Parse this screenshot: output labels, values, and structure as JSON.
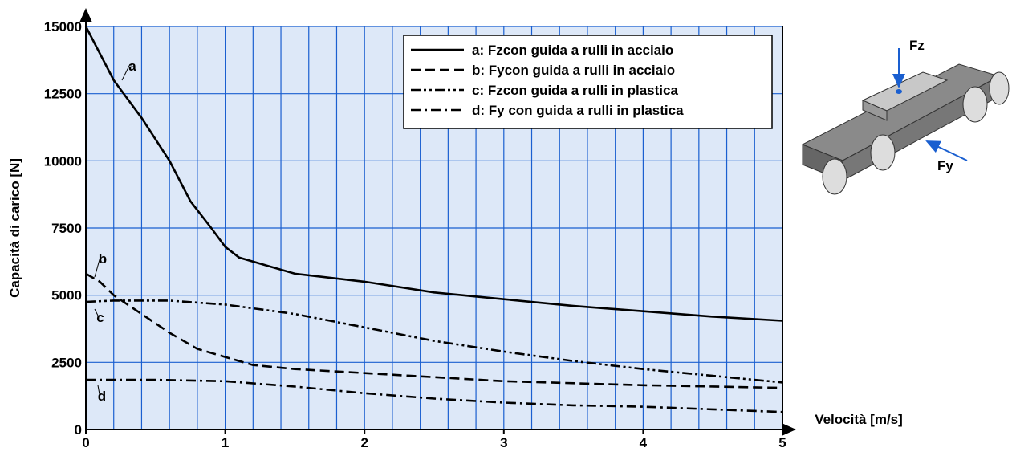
{
  "chart_data": {
    "type": "line",
    "xlabel": "Velocità [m/s]",
    "ylabel": "Capacità di carico [N]",
    "xlim": [
      0,
      5
    ],
    "ylim": [
      0,
      15000
    ],
    "xticks": [
      0,
      1,
      2,
      3,
      4,
      5
    ],
    "yticks": [
      0,
      2500,
      5000,
      7500,
      10000,
      12500,
      15000
    ],
    "grid": true,
    "legend": "upper right",
    "series": [
      {
        "name": "a: Fzcon guida a rulli in acciaio",
        "label": "a",
        "color": "#000000",
        "dash": "solid",
        "x": [
          0,
          0.1,
          0.2,
          0.4,
          0.6,
          0.75,
          0.9,
          1.0,
          1.1,
          1.3,
          1.5,
          2,
          2.5,
          3,
          3.5,
          4,
          4.5,
          5
        ],
        "values": [
          15000,
          14000,
          13000,
          11600,
          10000,
          8500,
          7500,
          6800,
          6400,
          6100,
          5800,
          5500,
          5100,
          4850,
          4600,
          4400,
          4200,
          4050
        ]
      },
      {
        "name": "b: Fycon guida a rulli in acciaio",
        "label": "b",
        "color": "#000000",
        "dash": "dashed",
        "x": [
          0,
          0.1,
          0.2,
          0.4,
          0.6,
          0.8,
          1.0,
          1.2,
          1.5,
          2,
          3,
          4,
          5
        ],
        "values": [
          5800,
          5500,
          5000,
          4300,
          3600,
          3000,
          2700,
          2400,
          2250,
          2100,
          1800,
          1650,
          1550
        ]
      },
      {
        "name": "c: Fzcon guida a rulli in plastica",
        "label": "c",
        "color": "#000000",
        "dash": "dashdotdot",
        "x": [
          0,
          0.2,
          0.6,
          1.0,
          1.5,
          2,
          2.5,
          3,
          3.5,
          4,
          4.5,
          5
        ],
        "values": [
          4750,
          4800,
          4800,
          4650,
          4300,
          3800,
          3300,
          2900,
          2550,
          2250,
          2000,
          1750
        ]
      },
      {
        "name": "d: Fy con guida a rulli in plastica",
        "label": "d",
        "color": "#000000",
        "dash": "dashdot",
        "x": [
          0,
          0.5,
          1,
          1.5,
          2,
          2.5,
          3,
          3.5,
          4,
          4.5,
          5
        ],
        "values": [
          1850,
          1850,
          1800,
          1600,
          1350,
          1150,
          1000,
          900,
          850,
          750,
          650
        ]
      }
    ],
    "figure_labels": [
      "Fz",
      "Fy"
    ]
  }
}
